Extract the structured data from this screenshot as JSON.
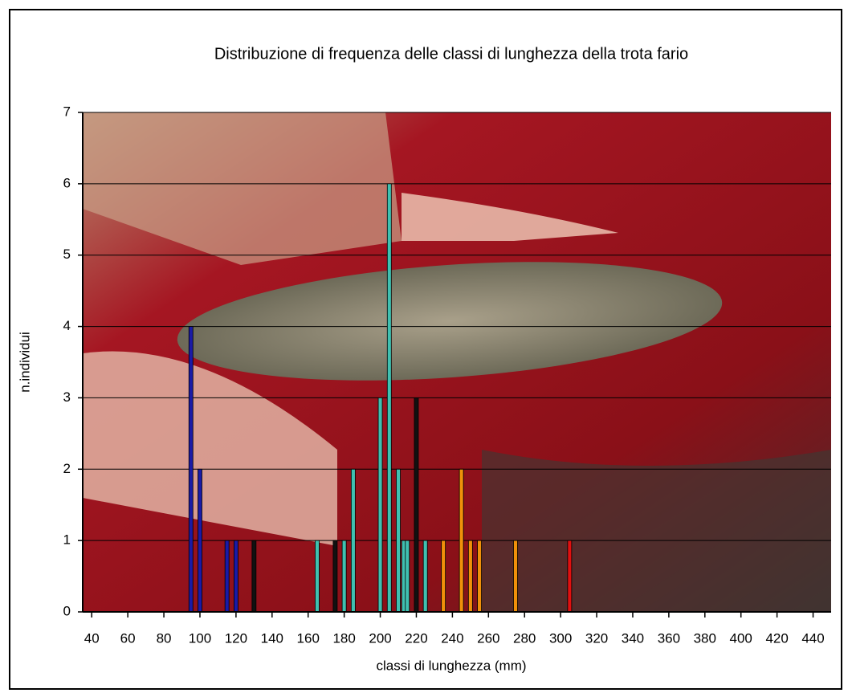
{
  "chart_data": {
    "type": "bar",
    "title": "Distribuzione di frequenza delle classi di lunghezza della trota fario",
    "x_label": "classi di lunghezza (mm)",
    "y_label": "n.individui",
    "x": [
      95,
      100,
      115,
      120,
      130,
      165,
      175,
      180,
      185,
      200,
      205,
      210,
      213,
      215,
      220,
      225,
      235,
      245,
      250,
      255,
      275,
      305
    ],
    "values": [
      4,
      2,
      1,
      1,
      1,
      1,
      1,
      1,
      2,
      3,
      6,
      2,
      1,
      1,
      3,
      1,
      1,
      2,
      1,
      1,
      1,
      1
    ],
    "colors": [
      "#1a1aa6",
      "#1a1aa6",
      "#1a1aa6",
      "#1a1aa6",
      "#111111",
      "#40c0b0",
      "#111111",
      "#40c0b0",
      "#40c0b0",
      "#40c0b0",
      "#40c0b0",
      "#40c0b0",
      "#40c0b0",
      "#40c0b0",
      "#111111",
      "#40c0b0",
      "#f0900a",
      "#f0900a",
      "#f0900a",
      "#f0900a",
      "#f0900a",
      "#e01010"
    ],
    "xlim": [
      35,
      450
    ],
    "xticks": [
      40,
      60,
      80,
      100,
      120,
      140,
      160,
      180,
      200,
      220,
      240,
      260,
      280,
      300,
      320,
      340,
      360,
      380,
      400,
      420,
      440
    ],
    "ylim": [
      0,
      7
    ],
    "yticks": [
      0,
      1,
      2,
      3,
      4,
      5,
      6,
      7
    ],
    "grid": true
  }
}
